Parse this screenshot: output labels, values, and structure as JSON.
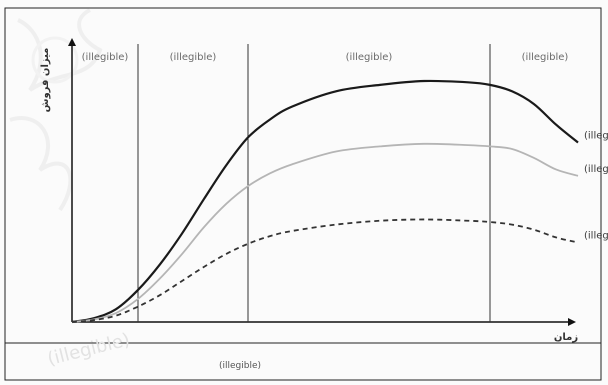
{
  "chart_data": {
    "type": "line",
    "title": "",
    "xlabel": "زمان",
    "ylabel": "میزان فروش",
    "stages": [
      {
        "name": "(illegible)",
        "start": 0,
        "end": 1.5
      },
      {
        "name": "(illegible)",
        "start": 1.5,
        "end": 4
      },
      {
        "name": "(illegible)",
        "start": 4,
        "end": 9.5
      },
      {
        "name": "(illegible)",
        "start": 9.5,
        "end": 12
      }
    ],
    "x": [
      0,
      0.5,
      1,
      1.5,
      2,
      2.5,
      3,
      3.5,
      4,
      4.5,
      5,
      6,
      7,
      8,
      9,
      9.5,
      10,
      10.5,
      11,
      11.5
    ],
    "series": [
      {
        "name": "(illegible)",
        "color": "#1a1a1a",
        "dash": "solid",
        "values": [
          0,
          0.3,
          1,
          2.5,
          4.5,
          6.9,
          9.6,
          12.2,
          14.4,
          15.8,
          16.8,
          18,
          18.5,
          18.8,
          18.7,
          18.5,
          18,
          17,
          15.4,
          14
        ]
      },
      {
        "name": "(illegible)",
        "color": "#b5b5b5",
        "dash": "solid",
        "values": [
          0,
          0.2,
          0.7,
          1.8,
          3.4,
          5.3,
          7.4,
          9.2,
          10.6,
          11.6,
          12.3,
          13.3,
          13.7,
          13.9,
          13.8,
          13.7,
          13.5,
          12.8,
          11.9,
          11.4
        ]
      },
      {
        "name": "(illegible)",
        "color": "#333333",
        "dash": "dashed",
        "values": [
          0,
          0.15,
          0.5,
          1.2,
          2.1,
          3.2,
          4.3,
          5.3,
          6.1,
          6.7,
          7.1,
          7.6,
          7.9,
          8,
          7.9,
          7.8,
          7.6,
          7.2,
          6.6,
          6.2
        ]
      }
    ],
    "xlim": [
      0,
      12
    ],
    "ylim": [
      0,
      22
    ],
    "grid": false,
    "legend": "labels at line ends"
  },
  "caption": "(illegible)",
  "watermark": "(illegible)"
}
